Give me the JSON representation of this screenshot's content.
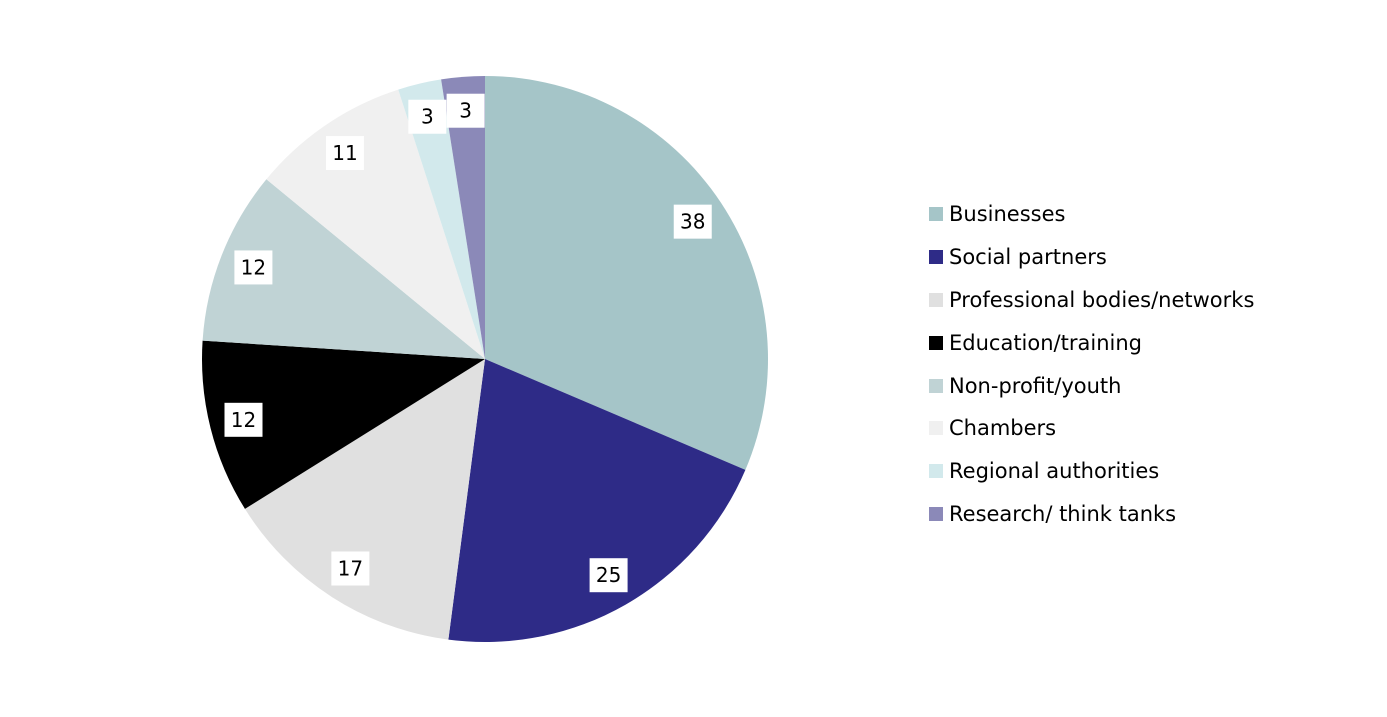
{
  "chart_data": {
    "type": "pie",
    "title": "",
    "start_angle": "top",
    "direction": "clockwise",
    "legend_position": "right",
    "slices": [
      {
        "label": "Businesses",
        "value": 38,
        "color": "#a5c5c8"
      },
      {
        "label": "Social partners",
        "value": 25,
        "color": "#2e2b87"
      },
      {
        "label": "Professional bodies/networks",
        "value": 17,
        "color": "#e0e0e0"
      },
      {
        "label": "Education/training",
        "value": 12,
        "color": "#000000"
      },
      {
        "label": "Non-profit/youth",
        "value": 12,
        "color": "#c0d3d5"
      },
      {
        "label": "Chambers",
        "value": 11,
        "color": "#f0f0f0"
      },
      {
        "label": "Regional authorities",
        "value": 3,
        "color": "#d2e9ec"
      },
      {
        "label": "Research/ think tanks",
        "value": 3,
        "color": "#8b89b8"
      }
    ]
  }
}
